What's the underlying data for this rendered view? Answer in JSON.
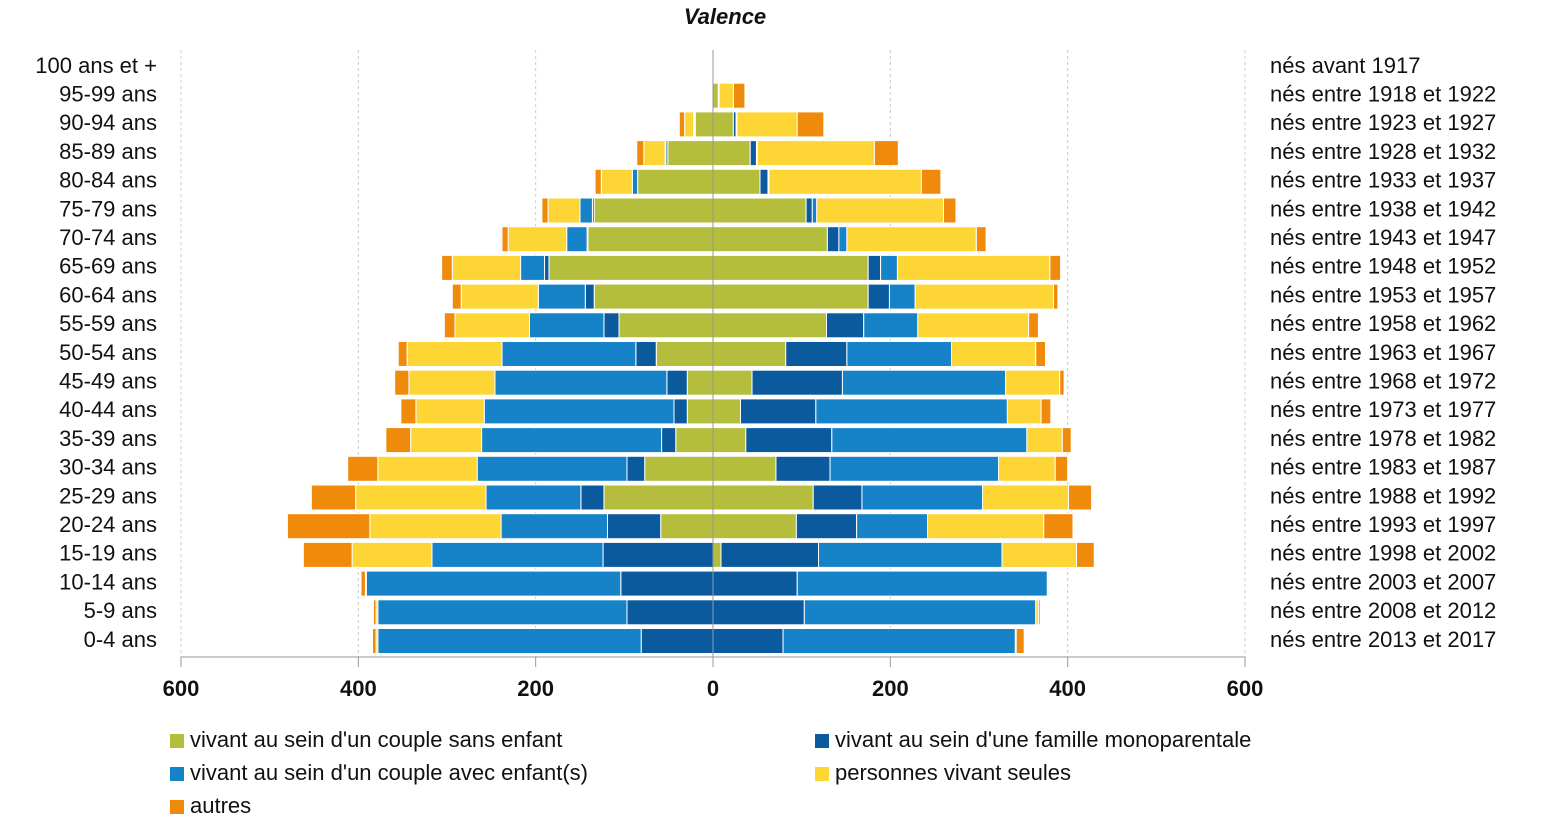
{
  "chart_data": {
    "type": "pyramid",
    "title": "Valence",
    "categories": [
      "100 ans et +",
      "95-99 ans",
      "90-94 ans",
      "85-89 ans",
      "80-84 ans",
      "75-79 ans",
      "70-74 ans",
      "65-69 ans",
      "60-64 ans",
      "55-59 ans",
      "50-54 ans",
      "45-49 ans",
      "40-44 ans",
      "35-39 ans",
      "30-34 ans",
      "25-29 ans",
      "20-24 ans",
      "15-19 ans",
      "10-14 ans",
      "5-9 ans",
      "0-4 ans"
    ],
    "categories_right": [
      "nés avant 1917",
      "nés entre 1918 et 1922",
      "nés entre 1923 et 1927",
      "nés entre 1928 et 1932",
      "nés entre 1933 et 1937",
      "nés entre 1938 et 1942",
      "nés entre 1943 et 1947",
      "nés entre 1948 et 1952",
      "nés entre 1953 et 1957",
      "nés entre 1958 et 1962",
      "nés entre 1963 et 1967",
      "nés entre 1968 et 1972",
      "nés entre 1973 et 1977",
      "nés entre 1978 et 1982",
      "nés entre 1983 et 1987",
      "nés entre 1988 et 1992",
      "nés entre 1993 et 1997",
      "nés entre 1998 et 2002",
      "nés entre 2003 et 2007",
      "nés entre 2008 et 2012",
      "nés entre 2013 et 2017"
    ],
    "series": [
      {
        "name": "vivant au sein d'un couple sans enfant",
        "color": "#b5bd3c",
        "values_left": [
          0,
          0,
          -20,
          -51,
          -85,
          -134,
          -141,
          -185,
          -134,
          -106,
          -64,
          -29,
          -29,
          -42,
          -77,
          -123,
          -59,
          0,
          0,
          0,
          0
        ],
        "values": [
          0,
          6,
          23,
          42,
          53,
          105,
          129,
          175,
          175,
          128,
          82,
          44,
          31,
          37,
          71,
          113,
          94,
          9,
          0,
          0,
          0
        ]
      },
      {
        "name": "vivant au sein d'une famille monoparentale",
        "color": "#0c5a9e",
        "values_left": [
          0,
          0,
          -1,
          -2,
          0,
          -2,
          -1,
          -5,
          -10,
          -17,
          -23,
          -23,
          -15,
          -16,
          -20,
          -26,
          -60,
          -124,
          -104,
          -97,
          -81
        ],
        "values": [
          0,
          0,
          3,
          7,
          9,
          7,
          13,
          14,
          24,
          42,
          69,
          102,
          85,
          97,
          61,
          55,
          68,
          110,
          95,
          103,
          79
        ]
      },
      {
        "name": "vivant au sein d'un couple avec enfant(s)",
        "color": "#1683c9",
        "values_left": [
          0,
          0,
          -1,
          -1,
          -6,
          -14,
          -23,
          -27,
          -53,
          -84,
          -151,
          -194,
          -214,
          -203,
          -169,
          -107,
          -120,
          -193,
          -287,
          -281,
          -297
        ],
        "values": [
          0,
          1,
          1,
          1,
          1,
          5,
          9,
          19,
          29,
          61,
          118,
          184,
          216,
          220,
          190,
          136,
          80,
          207,
          282,
          261,
          262
        ]
      },
      {
        "name": "personnes vivant seules",
        "color": "#fdd534",
        "values_left": [
          0,
          0,
          -10,
          -24,
          -35,
          -36,
          -66,
          -77,
          -87,
          -84,
          -107,
          -97,
          -77,
          -80,
          -112,
          -147,
          -148,
          -90,
          -1,
          -2,
          -2
        ],
        "values": [
          0,
          16,
          68,
          132,
          172,
          143,
          146,
          172,
          156,
          125,
          95,
          61,
          38,
          40,
          64,
          97,
          131,
          84,
          0,
          3,
          1
        ]
      },
      {
        "name": "autres",
        "color": "#ef8a0a",
        "values_left": [
          0,
          0,
          -6,
          -8,
          -7,
          -7,
          -7,
          -12,
          -10,
          -12,
          -10,
          -16,
          -17,
          -28,
          -34,
          -50,
          -93,
          -55,
          -5,
          -3,
          -4
        ],
        "values": [
          0,
          13,
          30,
          27,
          22,
          14,
          11,
          12,
          5,
          11,
          11,
          5,
          11,
          10,
          14,
          26,
          33,
          20,
          0,
          2,
          9
        ]
      }
    ],
    "xlim": [
      -600,
      600
    ],
    "xticks": [
      {
        "value": -600,
        "label": "600"
      },
      {
        "value": -400,
        "label": "400"
      },
      {
        "value": -200,
        "label": "200"
      },
      0,
      200,
      400,
      600
    ],
    "grid": true
  }
}
